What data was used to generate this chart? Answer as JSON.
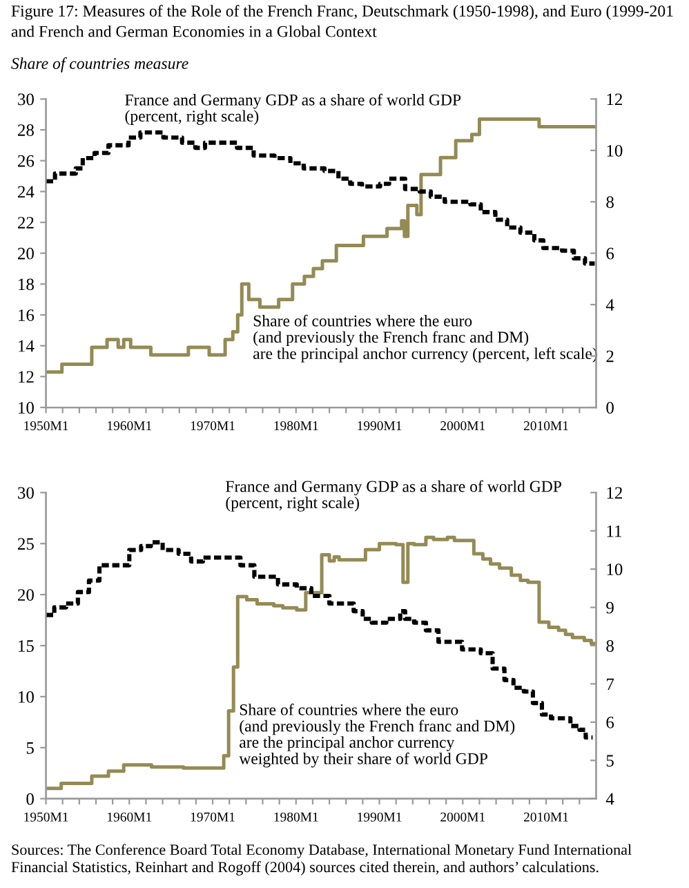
{
  "chart_data": [
    {
      "type": "step",
      "title": "Figure 17: Measures of the Role of the French Franc, Deutschmark (1950-1998), and Euro (1999-201 and French and German Economies in a Global Context",
      "subtitle": "Share of countries measure",
      "xlim": [
        "1950-01",
        "2016-01"
      ],
      "xticks": [
        {
          "value": "1950-01",
          "label": "1950M1"
        },
        {
          "value": "1952-01",
          "label": null
        },
        {
          "value": "1954-01",
          "label": null
        },
        {
          "value": "1956-01",
          "label": null
        },
        {
          "value": "1958-01",
          "label": null
        },
        {
          "value": "1960-01",
          "label": "1960M1"
        },
        {
          "value": "1962-01",
          "label": null
        },
        {
          "value": "1964-01",
          "label": null
        },
        {
          "value": "1966-01",
          "label": null
        },
        {
          "value": "1968-01",
          "label": null
        },
        {
          "value": "1970-01",
          "label": "1970M1"
        },
        {
          "value": "1972-01",
          "label": null
        },
        {
          "value": "1974-01",
          "label": null
        },
        {
          "value": "1976-01",
          "label": null
        },
        {
          "value": "1978-01",
          "label": null
        },
        {
          "value": "1980-01",
          "label": "1980M1"
        },
        {
          "value": "1982-01",
          "label": null
        },
        {
          "value": "1984-01",
          "label": null
        },
        {
          "value": "1986-01",
          "label": null
        },
        {
          "value": "1988-01",
          "label": null
        },
        {
          "value": "1990-01",
          "label": "1990M1"
        },
        {
          "value": "1992-01",
          "label": null
        },
        {
          "value": "1994-01",
          "label": null
        },
        {
          "value": "1996-01",
          "label": null
        },
        {
          "value": "1998-01",
          "label": null
        },
        {
          "value": "2000-01",
          "label": "2000M1"
        },
        {
          "value": "2002-01",
          "label": null
        },
        {
          "value": "2004-01",
          "label": null
        },
        {
          "value": "2006-01",
          "label": null
        },
        {
          "value": "2008-01",
          "label": null
        },
        {
          "value": "2010-01",
          "label": "2010M1"
        },
        {
          "value": "2012-01",
          "label": null
        },
        {
          "value": "2014-01",
          "label": null
        }
      ],
      "ylim": [
        10,
        30
      ],
      "yticks": [
        10,
        12,
        14,
        16,
        18,
        20,
        22,
        24,
        26,
        28,
        30
      ],
      "y2lim": [
        0,
        12
      ],
      "y2ticks": [
        0,
        2,
        4,
        6,
        8,
        10,
        12
      ],
      "series": [
        {
          "name": "Share of countries where the euro\n(and previously the French franc and DM)\nare the principal anchor currency (percent, left scale)",
          "color": "#948a54",
          "line_style": "solid",
          "x": [
            "1950-01",
            "1951-12",
            "1955-07",
            "1957-05",
            "1958-09",
            "1959-05",
            "1960-03",
            "1962-08",
            "1967-02",
            "1969-08",
            "1971-07",
            "1972-06",
            "1973-01",
            "1973-07",
            "1974-05",
            "1975-09",
            "1977-12",
            "1979-08",
            "1981-01",
            "1982-02",
            "1983-03",
            "1984-11",
            "1988-02",
            "1990-12",
            "1992-09",
            "1993-01",
            "1993-06",
            "1994-07",
            "1995-01",
            "1997-05",
            "1999-03",
            "2001-02",
            "2002-01",
            "2009-03",
            "2016-01"
          ],
          "values": [
            12.3,
            12.8,
            13.9,
            14.4,
            13.9,
            14.4,
            13.9,
            13.4,
            13.9,
            13.4,
            14.4,
            14.9,
            16.0,
            18.0,
            17.0,
            16.5,
            17.0,
            18.0,
            18.5,
            19.0,
            19.5,
            20.5,
            21.1,
            21.6,
            22.1,
            21.1,
            23.1,
            22.5,
            25.1,
            26.2,
            27.3,
            27.7,
            28.7,
            28.2,
            28.2
          ]
        },
        {
          "name": "France and Germany GDP as a share of world GDP\n(percent, right scale)",
          "axis": "y2",
          "color": "#000000",
          "line_style": "dashed",
          "x": [
            "1950-01",
            "1951-02",
            "1953-08",
            "1954-06",
            "1955-11",
            "1957-07",
            "1959-12",
            "1961-05",
            "1964-02",
            "1966-05",
            "1967-12",
            "1969-02",
            "1972-12",
            "1974-12",
            "1977-06",
            "1979-05",
            "1980-12",
            "1983-06",
            "1985-02",
            "1986-07",
            "1987-12",
            "1990-02",
            "1991-03",
            "1993-02",
            "1994-11",
            "1996-03",
            "1997-11",
            "2000-12",
            "2002-03",
            "2003-12",
            "2005-05",
            "2006-12",
            "2008-08",
            "2009-09",
            "2011-12",
            "2013-05",
            "2014-09",
            "2015-11"
          ],
          "values": [
            8.8,
            9.1,
            9.3,
            9.7,
            9.9,
            10.2,
            10.5,
            10.7,
            10.5,
            10.3,
            10.1,
            10.3,
            10.1,
            9.8,
            9.7,
            9.5,
            9.3,
            9.2,
            8.9,
            8.7,
            8.6,
            8.7,
            8.9,
            8.5,
            8.4,
            8.2,
            8.0,
            7.9,
            7.6,
            7.3,
            7.0,
            6.8,
            6.5,
            6.2,
            6.1,
            5.8,
            5.6,
            5.6
          ]
        }
      ]
    },
    {
      "type": "step",
      "xlim": [
        "1950-01",
        "2016-01"
      ],
      "xticks": [
        {
          "value": "1950-01",
          "label": "1950M1"
        },
        {
          "value": "1952-01",
          "label": null
        },
        {
          "value": "1954-01",
          "label": null
        },
        {
          "value": "1956-01",
          "label": null
        },
        {
          "value": "1958-01",
          "label": null
        },
        {
          "value": "1960-01",
          "label": "1960M1"
        },
        {
          "value": "1962-01",
          "label": null
        },
        {
          "value": "1964-01",
          "label": null
        },
        {
          "value": "1966-01",
          "label": null
        },
        {
          "value": "1968-01",
          "label": null
        },
        {
          "value": "1970-01",
          "label": "1970M1"
        },
        {
          "value": "1972-01",
          "label": null
        },
        {
          "value": "1974-01",
          "label": null
        },
        {
          "value": "1976-01",
          "label": null
        },
        {
          "value": "1978-01",
          "label": null
        },
        {
          "value": "1980-01",
          "label": "1980M1"
        },
        {
          "value": "1982-01",
          "label": null
        },
        {
          "value": "1984-01",
          "label": null
        },
        {
          "value": "1986-01",
          "label": null
        },
        {
          "value": "1988-01",
          "label": null
        },
        {
          "value": "1990-01",
          "label": "1990M1"
        },
        {
          "value": "1992-01",
          "label": null
        },
        {
          "value": "1994-01",
          "label": null
        },
        {
          "value": "1996-01",
          "label": null
        },
        {
          "value": "1998-01",
          "label": null
        },
        {
          "value": "2000-01",
          "label": "2000M1"
        },
        {
          "value": "2002-01",
          "label": null
        },
        {
          "value": "2004-01",
          "label": null
        },
        {
          "value": "2006-01",
          "label": null
        },
        {
          "value": "2008-01",
          "label": null
        },
        {
          "value": "2010-01",
          "label": "2010M1"
        },
        {
          "value": "2012-01",
          "label": null
        },
        {
          "value": "2014-01",
          "label": null
        }
      ],
      "ylim": [
        0,
        30
      ],
      "yticks": [
        0,
        5,
        10,
        15,
        20,
        25,
        30
      ],
      "y2lim": [
        4,
        12
      ],
      "y2ticks": [
        4,
        5,
        6,
        7,
        8,
        9,
        10,
        11,
        12
      ],
      "series": [
        {
          "name": "Share of countries where the euro\n(and previously the French franc and DM)\nare the principal anchor currency\nweighted by their share of world GDP",
          "color": "#948a54",
          "line_style": "solid",
          "x": [
            "1950-01",
            "1951-11",
            "1955-07",
            "1957-07",
            "1959-05",
            "1962-09",
            "1966-07",
            "1971-05",
            "1971-12",
            "1972-07",
            "1973-01",
            "1974-02",
            "1975-05",
            "1977-05",
            "1978-06",
            "1980-02",
            "1981-03",
            "1983-02",
            "1984-01",
            "1984-08",
            "1985-03",
            "1988-05",
            "1990-01",
            "1992-01",
            "1992-11",
            "1993-06",
            "1994-03",
            "1995-08",
            "1996-07",
            "1998-03",
            "1999-01",
            "2001-05",
            "2002-06",
            "2003-05",
            "2004-06",
            "2005-11",
            "2006-12",
            "2007-11",
            "2009-03",
            "2010-05",
            "2011-07",
            "2012-05",
            "2013-03",
            "2014-08",
            "2015-06",
            "2016-01"
          ],
          "values": [
            1.0,
            1.5,
            2.2,
            2.7,
            3.3,
            3.1,
            3.0,
            4.2,
            8.6,
            12.9,
            19.8,
            19.5,
            19.1,
            18.9,
            18.7,
            18.5,
            20.2,
            23.9,
            23.3,
            23.7,
            23.4,
            24.4,
            25.0,
            24.9,
            21.2,
            25.0,
            24.9,
            25.6,
            25.4,
            25.6,
            25.3,
            24.0,
            23.5,
            23.0,
            22.6,
            21.9,
            21.4,
            21.2,
            17.3,
            16.8,
            16.5,
            16.1,
            15.8,
            15.5,
            15.2,
            15.2
          ]
        },
        {
          "name": "France and Germany GDP as a share of world GDP\n(percent, right scale)",
          "axis": "y2",
          "color": "#000000",
          "line_style": "dashed",
          "x": [
            "1950-01",
            "1951-01",
            "1952-06",
            "1953-11",
            "1955-03",
            "1956-06",
            "1960-01",
            "1961-06",
            "1962-08",
            "1964-01",
            "1965-12",
            "1967-06",
            "1968-11",
            "1973-05",
            "1975-01",
            "1977-11",
            "1980-02",
            "1981-11",
            "1984-01",
            "1986-12",
            "1988-01",
            "1989-02",
            "1990-11",
            "1992-07",
            "1993-02",
            "1994-03",
            "1995-08",
            "1997-02",
            "1999-12",
            "2002-03",
            "2003-08",
            "2005-01",
            "2006-02",
            "2007-05",
            "2008-06",
            "2009-07",
            "2010-08",
            "2012-12",
            "2014-01",
            "2014-10",
            "2015-08"
          ],
          "values": [
            8.8,
            9.0,
            9.1,
            9.4,
            9.7,
            10.1,
            10.5,
            10.6,
            10.7,
            10.5,
            10.4,
            10.2,
            10.3,
            10.1,
            9.8,
            9.6,
            9.5,
            9.3,
            9.1,
            8.9,
            8.7,
            8.6,
            8.7,
            8.9,
            8.7,
            8.6,
            8.4,
            8.1,
            7.9,
            7.8,
            7.4,
            7.1,
            6.9,
            6.8,
            6.5,
            6.2,
            6.1,
            5.9,
            5.8,
            5.6,
            5.6
          ]
        }
      ],
      "annotations": [
        "Sources: The Conference Board Total Economy Database, International Monetary Fund International Financial Statistics, Reinhart and Rogoff (2004) sources cited therein, and authors’ calculations."
      ]
    }
  ]
}
